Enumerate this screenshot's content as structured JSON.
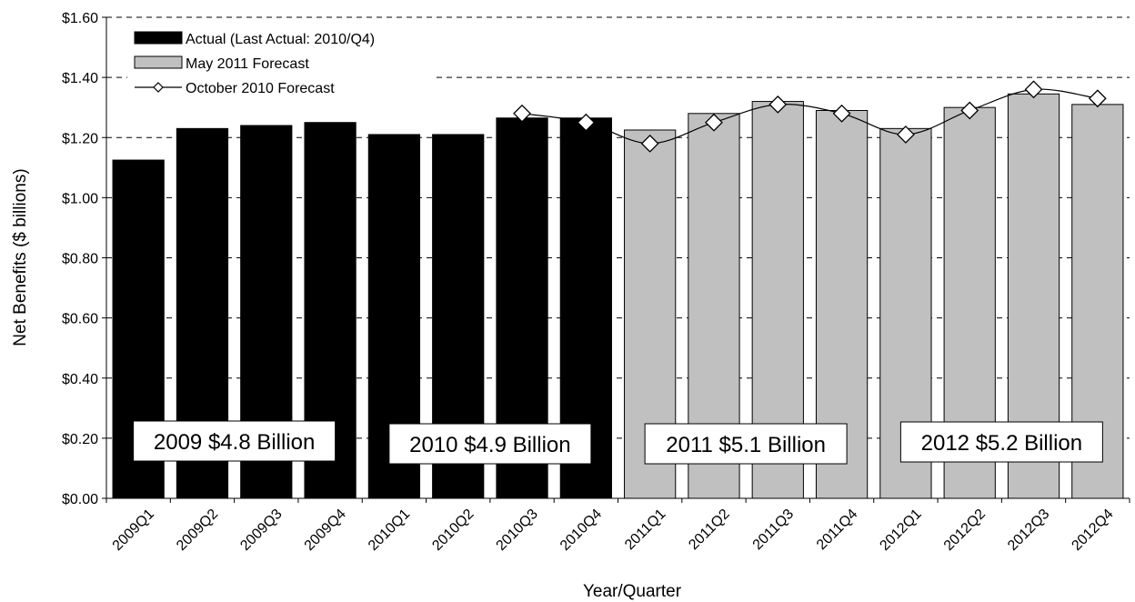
{
  "chart_data": {
    "type": "bar",
    "categories": [
      "2009Q1",
      "2009Q2",
      "2009Q3",
      "2009Q4",
      "2010Q1",
      "2010Q2",
      "2010Q3",
      "2010Q4",
      "2011Q1",
      "2011Q2",
      "2011Q3",
      "2011Q4",
      "2012Q1",
      "2012Q2",
      "2012Q3",
      "2012Q4"
    ],
    "series": [
      {
        "name": "Actual (Last Actual: 2010/Q4)",
        "kind": "bar",
        "color": "#000000",
        "values": [
          1.125,
          1.23,
          1.24,
          1.25,
          1.21,
          1.21,
          1.265,
          1.265,
          null,
          null,
          null,
          null,
          null,
          null,
          null,
          null
        ]
      },
      {
        "name": "May 2011 Forecast",
        "kind": "bar",
        "color": "#c0c0c0",
        "values": [
          null,
          null,
          null,
          null,
          null,
          null,
          null,
          null,
          1.225,
          1.28,
          1.32,
          1.29,
          1.23,
          1.3,
          1.345,
          1.31
        ]
      },
      {
        "name": "October 2010 Forecast",
        "kind": "line",
        "color": "#000000",
        "values": [
          null,
          null,
          null,
          null,
          null,
          null,
          1.28,
          1.25,
          1.18,
          1.25,
          1.31,
          1.28,
          1.21,
          1.29,
          1.36,
          1.33
        ]
      }
    ],
    "xlabel": "Year/Quarter",
    "ylabel": "Net Benefits ($ billions)",
    "ylim": [
      0,
      1.6
    ],
    "yticks": [
      "$0.00",
      "$0.20",
      "$0.40",
      "$0.60",
      "$0.80",
      "$1.00",
      "$1.20",
      "$1.40",
      "$1.60"
    ],
    "grid": "dashed horizontal",
    "legend": "top-left",
    "annotations": [
      {
        "text": "2009 $4.8 Billion",
        "quarters": [
          0,
          3
        ]
      },
      {
        "text": "2010 $4.9 Billion",
        "quarters": [
          4,
          7
        ]
      },
      {
        "text": "2011 $5.1 Billion",
        "quarters": [
          8,
          11
        ]
      },
      {
        "text": "2012 $5.2 Billion",
        "quarters": [
          12,
          15
        ]
      }
    ]
  }
}
